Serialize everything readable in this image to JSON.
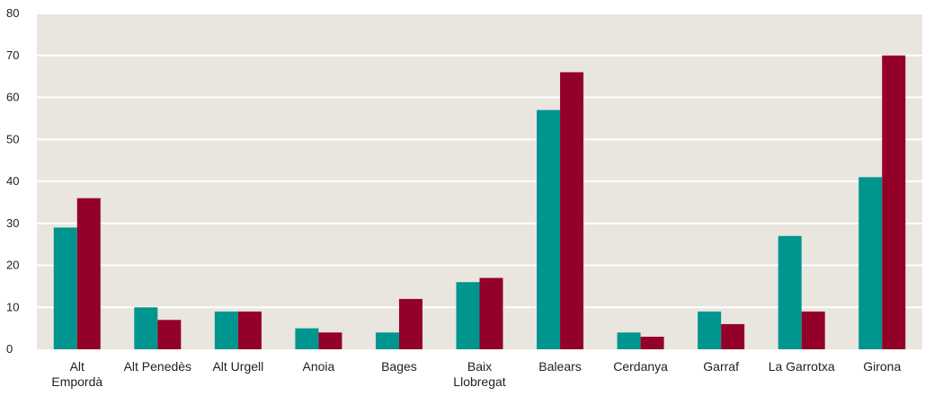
{
  "chart_data": {
    "type": "bar",
    "categories": [
      [
        "Alt",
        "Empordà"
      ],
      [
        "Alt Penedès"
      ],
      [
        "Alt Urgell"
      ],
      [
        "Anoia"
      ],
      [
        "Bages"
      ],
      [
        "Baix",
        "Llobregat"
      ],
      [
        "Balears"
      ],
      [
        "Cerdanya"
      ],
      [
        "Garraf"
      ],
      [
        "La Garrotxa"
      ],
      [
        "Girona"
      ]
    ],
    "series": [
      {
        "values": [
          29,
          10,
          9,
          5,
          4,
          16,
          57,
          4,
          9,
          27,
          41
        ],
        "color": "#00958f"
      },
      {
        "values": [
          36,
          7,
          9,
          4,
          12,
          17,
          66,
          3,
          6,
          9,
          70
        ],
        "color": "#930028"
      }
    ],
    "yticks": [
      "0",
      "10",
      "20",
      "30",
      "40",
      "50",
      "60",
      "70",
      "80"
    ],
    "ylim": [
      0,
      80
    ],
    "grid": true,
    "legend": "none",
    "plot_background": "#e9e5df",
    "gridline_color": "#ffffff"
  }
}
